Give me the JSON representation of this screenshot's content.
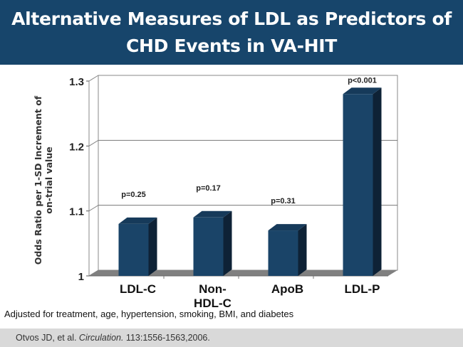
{
  "header": {
    "title_line1": "Alternative Measures of LDL as Predictors of",
    "title_line2": "CHD Events in VA-HIT"
  },
  "chart_data": {
    "type": "bar",
    "style": "3d-column",
    "categories": [
      "LDL-C",
      "Non-HDL-C",
      "ApoB",
      "LDL-P"
    ],
    "category_lines": [
      [
        "LDL-C"
      ],
      [
        "Non-",
        "HDL-C"
      ],
      [
        "ApoB"
      ],
      [
        "LDL-P"
      ]
    ],
    "values": [
      1.08,
      1.09,
      1.07,
      1.28
    ],
    "data_labels": [
      "p=0.25",
      "p=0.17",
      "p=0.31",
      "p<0.001"
    ],
    "ylabel_lines": [
      "Odds Ratio per 1-SD Increment of",
      "on-trial value"
    ],
    "yticks": [
      1,
      1.1,
      1.2,
      1.3
    ],
    "ytick_labels": [
      "1",
      "1.1",
      "1.2",
      "1.3"
    ],
    "ylim": [
      1,
      1.3
    ],
    "grid": true,
    "colors": {
      "bar_front": "#1a4468",
      "bar_top": "#163a5a",
      "bar_side": "#0e2236",
      "floor": "#808080"
    }
  },
  "note": "Adjusted  for treatment, age, hypertension, smoking, BMI, and diabetes",
  "footer": {
    "authors": "Otvos JD, et al. ",
    "journal": "Circulation.",
    "citation": " 113:1556-1563,2006."
  }
}
